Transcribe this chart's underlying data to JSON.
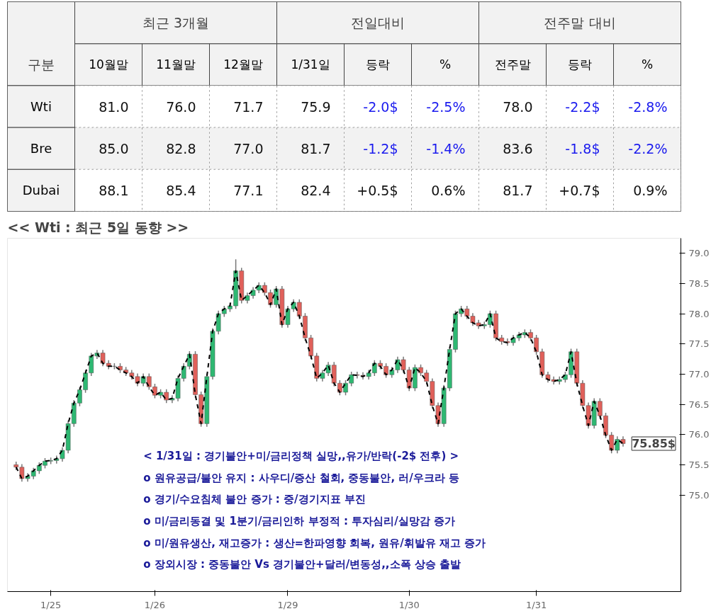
{
  "chart_data": [
    {
      "type": "heatmap",
      "categories": [
        "10월말",
        "11월말",
        "12월말",
        "1/31일",
        "등락",
        "%",
        "전주말",
        "등락",
        "%"
      ],
      "y_categories": [
        "Wti",
        "Bre",
        "Dubai"
      ],
      "cells": [
        [
          81.0,
          76.0,
          71.7,
          75.9,
          -2.0,
          -2.5,
          78.0,
          -2.2,
          -2.8
        ],
        [
          85.0,
          82.8,
          77.0,
          81.7,
          -1.2,
          -1.4,
          83.6,
          -1.8,
          -2.2
        ],
        [
          88.1,
          85.4,
          77.1,
          82.4,
          0.5,
          0.6,
          81.7,
          0.7,
          0.9
        ]
      ],
      "cell_labels": [
        [
          "81.0",
          "76.0",
          "71.7",
          "75.9",
          "-2.0$",
          "-2.5%",
          "78.0",
          "-2.2$",
          "-2.8%"
        ],
        [
          "85.0",
          "82.8",
          "77.0",
          "81.7",
          "-1.2$",
          "-1.4%",
          "83.6",
          "-1.8$",
          "-2.2%"
        ],
        [
          "88.1",
          "85.4",
          "77.1",
          "82.4",
          "+0.5$",
          "0.6%",
          "81.7",
          "+0.7$",
          "0.9%"
        ]
      ],
      "annotations": [
        "구분",
        "최근 3개월",
        "전일대비",
        "전주말 대비"
      ]
    },
    {
      "type": "candlestick",
      "title": "<< Wti : 최근 5일 동향 >>",
      "categories": [
        null,
        null,
        null,
        null,
        null,
        null,
        "1/25",
        null,
        null,
        null,
        null,
        null,
        null,
        null,
        null,
        null,
        null,
        null,
        null,
        null,
        null,
        null,
        null,
        null,
        "1/26",
        null,
        null,
        null,
        null,
        null,
        null,
        null,
        null,
        null,
        null,
        null,
        null,
        null,
        null,
        null,
        null,
        null,
        null,
        null,
        null,
        null,
        null,
        "1/29",
        null,
        null,
        null,
        null,
        null,
        null,
        null,
        null,
        null,
        null,
        null,
        null,
        null,
        null,
        null,
        null,
        null,
        null,
        null,
        null,
        "1/30",
        null,
        null,
        null,
        null,
        null,
        null,
        null,
        null,
        null,
        null,
        null,
        null,
        null,
        null,
        null,
        null,
        null,
        null,
        null,
        null,
        null,
        "1/31",
        null,
        null,
        null,
        null,
        null,
        null,
        null,
        null,
        null,
        null,
        null,
        null,
        null,
        null,
        null
      ],
      "ohlc": [
        [
          75.5,
          75.55,
          75.41,
          75.46
        ],
        [
          75.46,
          75.51,
          75.22,
          75.27
        ],
        [
          75.27,
          75.36,
          75.22,
          75.31
        ],
        [
          75.31,
          75.45,
          75.26,
          75.4
        ],
        [
          75.4,
          75.54,
          75.35,
          75.49
        ],
        [
          75.49,
          75.61,
          75.44,
          75.56
        ],
        [
          75.56,
          75.62,
          75.51,
          75.57
        ],
        [
          75.57,
          75.65,
          75.52,
          75.6
        ],
        [
          75.6,
          75.79,
          75.55,
          75.74
        ],
        [
          75.74,
          76.23,
          75.69,
          76.18
        ],
        [
          76.18,
          76.57,
          76.13,
          76.52
        ],
        [
          76.52,
          76.79,
          76.47,
          76.74
        ],
        [
          76.74,
          77.07,
          76.69,
          77.02
        ],
        [
          77.02,
          77.35,
          76.97,
          77.3
        ],
        [
          77.3,
          77.4,
          77.25,
          77.35
        ],
        [
          77.35,
          77.4,
          77.13,
          77.18
        ],
        [
          77.18,
          77.23,
          77.08,
          77.13
        ],
        [
          77.13,
          77.18,
          77.08,
          77.13
        ],
        [
          77.13,
          77.18,
          77.02,
          77.07
        ],
        [
          77.07,
          77.12,
          76.97,
          77.02
        ],
        [
          77.02,
          77.07,
          76.91,
          76.96
        ],
        [
          76.96,
          77.01,
          76.8,
          76.85
        ],
        [
          76.85,
          77.01,
          76.8,
          76.96
        ],
        [
          76.96,
          77.01,
          76.74,
          76.79
        ],
        [
          76.79,
          76.84,
          76.6,
          76.65
        ],
        [
          76.65,
          76.75,
          76.6,
          76.7
        ],
        [
          76.7,
          76.75,
          76.52,
          76.57
        ],
        [
          76.57,
          76.65,
          76.52,
          76.6
        ],
        [
          76.6,
          76.98,
          76.55,
          76.93
        ],
        [
          76.93,
          77.18,
          76.88,
          77.13
        ],
        [
          77.13,
          77.38,
          77.08,
          77.33
        ],
        [
          77.33,
          77.38,
          76.61,
          76.66
        ],
        [
          76.66,
          76.71,
          76.13,
          76.18
        ],
        [
          76.18,
          77.01,
          76.13,
          76.96
        ],
        [
          76.96,
          77.76,
          76.91,
          77.71
        ],
        [
          77.71,
          78.05,
          77.66,
          78.0
        ],
        [
          78.0,
          78.13,
          77.95,
          78.08
        ],
        [
          78.08,
          78.18,
          78.03,
          78.13
        ],
        [
          78.13,
          78.9,
          78.08,
          78.71
        ],
        [
          78.71,
          78.76,
          78.17,
          78.22
        ],
        [
          78.22,
          78.35,
          78.17,
          78.3
        ],
        [
          78.3,
          78.44,
          78.25,
          78.39
        ],
        [
          78.39,
          78.52,
          78.34,
          78.47
        ],
        [
          78.47,
          78.52,
          78.3,
          78.35
        ],
        [
          78.35,
          78.4,
          78.1,
          78.15
        ],
        [
          78.15,
          78.46,
          78.1,
          78.41
        ],
        [
          78.41,
          78.46,
          77.77,
          77.82
        ],
        [
          77.82,
          78.13,
          77.77,
          78.08
        ],
        [
          78.08,
          78.24,
          78.03,
          78.19
        ],
        [
          78.19,
          78.24,
          77.91,
          77.96
        ],
        [
          77.96,
          78.01,
          77.55,
          77.6
        ],
        [
          77.6,
          77.65,
          77.25,
          77.3
        ],
        [
          77.3,
          77.35,
          76.88,
          76.93
        ],
        [
          76.93,
          77.07,
          76.88,
          77.02
        ],
        [
          77.02,
          77.2,
          76.97,
          77.15
        ],
        [
          77.15,
          77.2,
          76.8,
          76.85
        ],
        [
          76.85,
          76.9,
          76.65,
          76.7
        ],
        [
          76.7,
          76.9,
          76.65,
          76.85
        ],
        [
          76.85,
          77.04,
          76.8,
          76.99
        ],
        [
          76.99,
          77.04,
          76.93,
          76.98
        ],
        [
          76.98,
          77.03,
          76.91,
          76.96
        ],
        [
          76.96,
          77.07,
          76.91,
          77.02
        ],
        [
          77.02,
          77.23,
          76.97,
          77.18
        ],
        [
          77.18,
          77.23,
          77.08,
          77.13
        ],
        [
          77.13,
          77.18,
          76.94,
          76.99
        ],
        [
          76.99,
          77.12,
          76.94,
          77.07
        ],
        [
          77.07,
          77.29,
          77.02,
          77.24
        ],
        [
          77.24,
          77.29,
          77.02,
          77.07
        ],
        [
          77.07,
          77.12,
          76.72,
          76.77
        ],
        [
          76.77,
          77.16,
          76.72,
          77.11
        ],
        [
          77.11,
          77.16,
          76.97,
          77.02
        ],
        [
          77.02,
          77.07,
          76.83,
          76.88
        ],
        [
          76.88,
          76.93,
          76.43,
          76.48
        ],
        [
          76.48,
          76.53,
          76.13,
          76.18
        ],
        [
          76.18,
          76.82,
          76.13,
          76.77
        ],
        [
          76.77,
          77.46,
          76.72,
          77.41
        ],
        [
          77.41,
          78.05,
          77.36,
          78.0
        ],
        [
          78.0,
          78.13,
          77.95,
          78.08
        ],
        [
          78.08,
          78.13,
          77.91,
          77.96
        ],
        [
          77.96,
          78.01,
          77.8,
          77.85
        ],
        [
          77.85,
          77.9,
          77.75,
          77.8
        ],
        [
          77.8,
          77.87,
          77.75,
          77.82
        ],
        [
          77.82,
          78.05,
          77.77,
          78.0
        ],
        [
          78.0,
          78.05,
          77.55,
          77.6
        ],
        [
          77.6,
          77.65,
          77.49,
          77.54
        ],
        [
          77.54,
          77.59,
          77.47,
          77.52
        ],
        [
          77.52,
          77.65,
          77.47,
          77.6
        ],
        [
          77.6,
          77.7,
          77.55,
          77.65
        ],
        [
          77.65,
          77.74,
          77.6,
          77.69
        ],
        [
          77.69,
          77.74,
          77.55,
          77.6
        ],
        [
          77.6,
          77.65,
          77.32,
          77.37
        ],
        [
          77.37,
          77.42,
          76.94,
          76.99
        ],
        [
          76.99,
          77.04,
          76.86,
          76.91
        ],
        [
          76.91,
          76.96,
          76.83,
          76.88
        ],
        [
          76.88,
          76.96,
          76.83,
          76.91
        ],
        [
          76.91,
          77.04,
          76.86,
          76.99
        ],
        [
          76.99,
          77.42,
          76.94,
          77.37
        ],
        [
          77.37,
          77.42,
          76.8,
          76.85
        ],
        [
          76.85,
          76.9,
          76.43,
          76.48
        ],
        [
          76.48,
          76.53,
          76.1,
          76.15
        ],
        [
          76.15,
          76.6,
          76.1,
          76.55
        ],
        [
          76.55,
          76.6,
          76.26,
          76.31
        ],
        [
          76.31,
          76.36,
          75.94,
          75.99
        ],
        [
          75.99,
          76.04,
          75.69,
          75.74
        ],
        [
          75.74,
          75.97,
          75.69,
          75.92
        ],
        [
          75.92,
          75.97,
          75.8,
          75.85
        ]
      ],
      "series": [
        {
          "type": "line",
          "color": "#000000",
          "values": [
            75.46,
            75.27,
            75.31,
            75.4,
            75.49,
            75.56,
            75.57,
            75.6,
            75.74,
            76.18,
            76.52,
            76.74,
            77.02,
            77.3,
            77.35,
            77.18,
            77.13,
            77.13,
            77.07,
            77.02,
            76.96,
            76.85,
            76.96,
            76.79,
            76.65,
            76.7,
            76.57,
            76.6,
            76.93,
            77.13,
            77.33,
            76.66,
            76.18,
            76.96,
            77.71,
            78.0,
            78.08,
            78.13,
            78.71,
            78.22,
            78.3,
            78.39,
            78.47,
            78.35,
            78.15,
            78.41,
            77.82,
            78.08,
            78.19,
            77.96,
            77.6,
            77.3,
            76.93,
            77.02,
            77.15,
            76.85,
            76.7,
            76.85,
            76.99,
            76.98,
            76.96,
            77.02,
            77.18,
            77.13,
            76.99,
            77.07,
            77.24,
            77.07,
            76.77,
            77.11,
            77.02,
            76.88,
            76.48,
            76.18,
            76.77,
            77.41,
            78.0,
            78.08,
            77.96,
            77.85,
            77.8,
            77.82,
            78.0,
            77.6,
            77.54,
            77.52,
            77.6,
            77.65,
            77.69,
            77.6,
            77.37,
            76.99,
            76.91,
            76.88,
            76.91,
            76.99,
            77.37,
            76.85,
            76.48,
            76.15,
            76.55,
            76.31,
            75.99,
            75.74,
            75.92,
            75.85
          ]
        }
      ],
      "line_style": "dashed",
      "ylim": [
        73.4,
        79.25
      ],
      "yticks": [
        {
          "value": 75,
          "label": "75.0"
        },
        {
          "value": 75.5,
          "label": "75.5"
        },
        {
          "value": 76,
          "label": "76.0"
        },
        {
          "value": 76.5,
          "label": "76.5"
        },
        {
          "value": 77,
          "label": "77.0"
        },
        {
          "value": 77.5,
          "label": "77.5"
        },
        {
          "value": 78,
          "label": "78.0"
        },
        {
          "value": 78.5,
          "label": "78.5"
        },
        {
          "value": 79,
          "label": "79.0"
        }
      ],
      "grid": false,
      "annotations": [
        "75.85$",
        "< 1/31일 : 경기불안+미/금리정책 실망,,유가/반락(-2$ 전후) >",
        "o 원유공급/불안 유지 : 사우디/증산 철회, 중동불안, 러/우크라 등",
        "o 경기/수요침체 불안 증가 : 중/경기지표 부진",
        "o 미/금리동결 및 1분기/금리인하 부정적 : 투자심리/실망감 증가",
        "o 미/원유생산, 재고증가 : 생산=한파영향 회복, 원유/휘발유 재고 증가",
        "o 장외시장 : 중동불안 Vs 경기불안+달러/변동성,,소폭 상승 출발"
      ]
    }
  ]
}
